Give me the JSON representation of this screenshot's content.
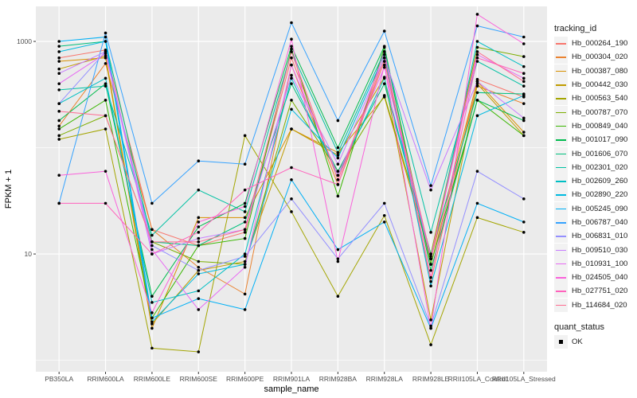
{
  "chart_data": {
    "type": "line",
    "xlabel": "sample_name",
    "ylabel": "FPKM + 1",
    "yscale": "log10",
    "ylim": [
      0.78,
      2137
    ],
    "yticks": [
      10,
      1000
    ],
    "ytick_labels": [
      "10",
      "1000"
    ],
    "grid": true,
    "legend_placement": "right",
    "categories": [
      "PB350LA",
      "RRIM600LA",
      "RRIM600LE",
      "RRIM600SE",
      "RRIM600PE",
      "RRIM901LA",
      "RRIM928BA",
      "RRIM928LA",
      "RRIM928LE",
      "RRII105LA_Control",
      "RRII105LA_Stressed"
    ],
    "legend_title": "tracking_id",
    "shape_legend_title": "quant_status",
    "shape_legend_items": [
      "OK"
    ],
    "series": [
      {
        "name": "Hb_000264_190",
        "color": "#F8766D",
        "values": [
          700,
          830,
          17,
          12,
          16,
          700,
          50,
          700,
          5.5,
          440,
          300
        ]
      },
      {
        "name": "Hb_000304_020",
        "color": "#EA8331",
        "values": [
          160,
          620,
          17,
          7.5,
          4.2,
          600,
          45,
          650,
          8,
          380,
          260
        ]
      },
      {
        "name": "Hb_000387_080",
        "color": "#D89000",
        "values": [
          650,
          700,
          2.0,
          22,
          22,
          150,
          90,
          300,
          9,
          420,
          140
        ]
      },
      {
        "name": "Hb_000442_030",
        "color": "#C09B00",
        "values": [
          550,
          730,
          2.2,
          7,
          8.5,
          150,
          85,
          460,
          2.4,
          400,
          130
        ]
      },
      {
        "name": "Hb_000563_540",
        "color": "#A3A500",
        "values": [
          120,
          150,
          1.3,
          1.2,
          130,
          25,
          4,
          23,
          1.4,
          22,
          16
        ]
      },
      {
        "name": "Hb_000787_070",
        "color": "#7CAE00",
        "values": [
          130,
          200,
          13,
          8.5,
          8.0,
          280,
          60,
          310,
          10,
          880,
          720
        ]
      },
      {
        "name": "Hb_000849_040",
        "color": "#39B600",
        "values": [
          150,
          280,
          2.5,
          12,
          14,
          850,
          35,
          880,
          8,
          280,
          130
        ]
      },
      {
        "name": "Hb_001017_090",
        "color": "#00BB4E",
        "values": [
          180,
          400,
          4.0,
          18,
          30,
          900,
          100,
          900,
          7,
          280,
          180
        ]
      },
      {
        "name": "Hb_001606_070",
        "color": "#00BF7D",
        "values": [
          900,
          1000,
          13,
          12,
          20,
          400,
          60,
          400,
          10,
          330,
          320
        ]
      },
      {
        "name": "Hb_002301_020",
        "color": "#00C1A3",
        "values": [
          350,
          380,
          15,
          40,
          25,
          800,
          90,
          800,
          16,
          650,
          380
        ]
      },
      {
        "name": "Hb_002609_260",
        "color": "#00BFC4",
        "values": [
          260,
          450,
          3.5,
          4.5,
          10,
          450,
          55,
          450,
          9,
          1000,
          580
        ]
      },
      {
        "name": "Hb_002890_220",
        "color": "#00BAE0",
        "values": [
          800,
          1000,
          2.3,
          6.5,
          8,
          230,
          80,
          750,
          5,
          200,
          310
        ]
      },
      {
        "name": "Hb_005245_090",
        "color": "#00B0F6",
        "values": [
          1000,
          1100,
          2.5,
          3.8,
          3.0,
          50,
          11,
          20,
          2.0,
          30,
          20
        ]
      },
      {
        "name": "Hb_006787_040",
        "color": "#35A2FF",
        "values": [
          30,
          1200,
          30,
          75,
          70,
          1500,
          180,
          1250,
          44,
          1400,
          1100
        ]
      },
      {
        "name": "Hb_006831_010",
        "color": "#9590FF",
        "values": [
          260,
          800,
          12,
          7,
          9.5,
          33,
          9,
          30,
          2.1,
          60,
          33
        ]
      },
      {
        "name": "Hb_009510_030",
        "color": "#C77CFF",
        "values": [
          500,
          800,
          10,
          14,
          17,
          480,
          70,
          700,
          40,
          420,
          190
        ]
      },
      {
        "name": "Hb_010931_100",
        "color": "#E76BF3",
        "values": [
          400,
          770,
          11,
          3,
          7.5,
          600,
          55,
          570,
          9,
          750,
          450
        ]
      },
      {
        "name": "Hb_024505_040",
        "color": "#FA62DB",
        "values": [
          55,
          60,
          2.8,
          20,
          28,
          1050,
          8.5,
          600,
          2.0,
          1800,
          950
        ]
      },
      {
        "name": "Hb_027751_020",
        "color": "#FF62BC",
        "values": [
          30,
          30,
          10,
          16,
          40,
          65,
          45,
          800,
          6,
          700,
          500
        ]
      },
      {
        "name": "Hb_114684_020",
        "color": "#FF6C91",
        "values": [
          220,
          200,
          13,
          13,
          17,
          800,
          50,
          650,
          9.5,
          800,
          420
        ]
      }
    ]
  }
}
